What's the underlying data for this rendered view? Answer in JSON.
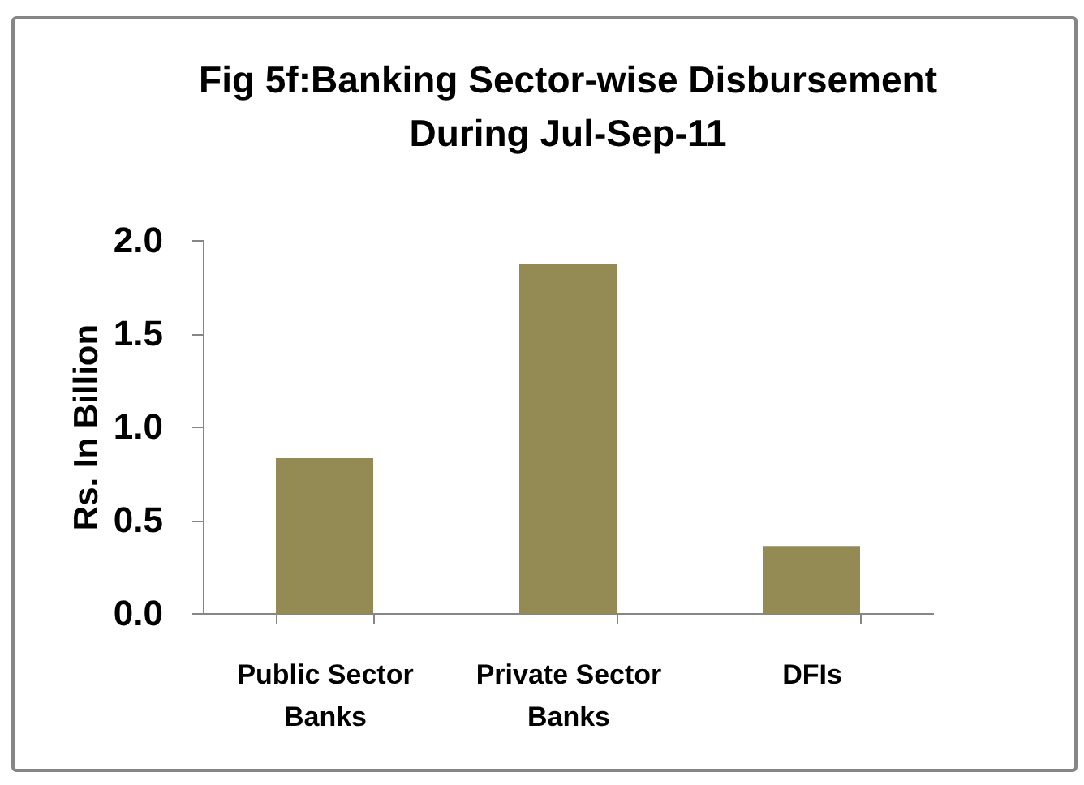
{
  "chart_data": {
    "type": "bar",
    "title": "Fig 5f:Banking Sector-wise Disbursement During Jul-Sep-11",
    "ylabel": "Rs. In Billion",
    "categories": [
      "Public Sector Banks",
      "Private Sector Banks",
      "DFIs"
    ],
    "values": [
      0.83,
      1.87,
      0.36
    ],
    "color": "#948a54",
    "ylim": [
      0,
      2
    ],
    "yticks": [
      {
        "value": 0,
        "label": "0.0"
      },
      0.5,
      {
        "value": 1,
        "label": "1.0"
      },
      1.5,
      {
        "value": 2,
        "label": "2.0"
      }
    ]
  }
}
